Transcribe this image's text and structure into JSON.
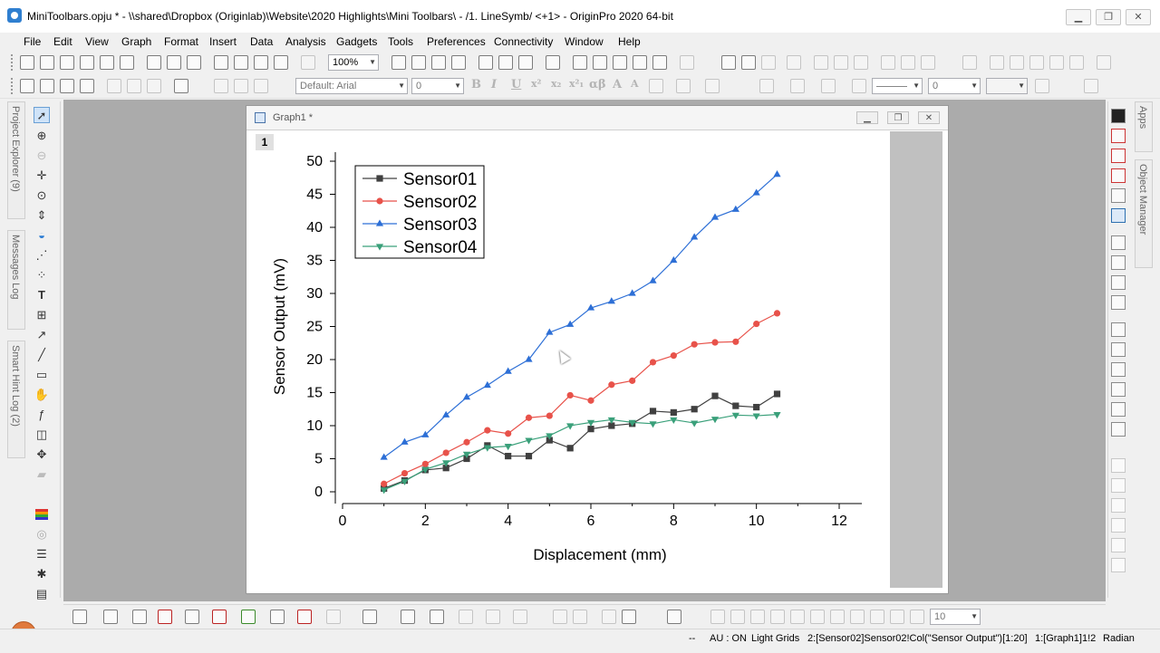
{
  "titlebar": {
    "title": "MiniToolbars.opju * - \\\\shared\\Dropbox (Originlab)\\Website\\2020 Highlights\\Mini Toolbars\\ - /1. LineSymb/ <+1> - OriginPro 2020 64-bit",
    "minimize": "▁",
    "maximize": "❐",
    "close": "✕"
  },
  "menu": [
    "File",
    "Edit",
    "View",
    "Graph",
    "Format",
    "Insert",
    "Data",
    "Analysis",
    "Gadgets",
    "Tools",
    "Preferences",
    "Connectivity",
    "Window",
    "Help"
  ],
  "toolbar": {
    "zoom_value": "100%",
    "font_name": "Default: Arial",
    "font_size": "0",
    "line_width": "0",
    "format_glyphs": [
      "B",
      "I",
      "U",
      "x²",
      "x₂",
      "x²₁",
      "αβ",
      "A",
      "A"
    ]
  },
  "left_panel_tabs": [
    "Project Explorer (9)",
    "Messages Log",
    "Smart Hint Log (2)"
  ],
  "right_panel_tabs": [
    "Apps",
    "Object Manager"
  ],
  "graph_window": {
    "title": "Graph1 *",
    "layer_label": "1",
    "minimize": "▁",
    "restore": "❐",
    "close": "✕"
  },
  "bottom_toolbar": {
    "size_value": "10"
  },
  "status": {
    "dots": "--",
    "au": "AU : ON",
    "grids": "Light Grids",
    "active_col": "2:[Sensor02]Sensor02!Col(\"Sensor Output\")[1:20]",
    "active_layer": "1:[Graph1]1!2",
    "angle": "Radian"
  },
  "chart_data": {
    "type": "line",
    "xlabel": "Displacement (mm)",
    "ylabel": "Sensor Output (mV)",
    "xlim": [
      0,
      12
    ],
    "ylim": [
      0,
      50
    ],
    "x_ticks": [
      0,
      2,
      4,
      6,
      8,
      10,
      12
    ],
    "y_ticks": [
      0,
      5,
      10,
      15,
      20,
      25,
      30,
      35,
      40,
      45,
      50
    ],
    "legend_position": "top-left",
    "grid": false,
    "x": [
      1.0,
      1.5,
      2.0,
      2.5,
      3.0,
      3.5,
      4.0,
      4.5,
      5.0,
      5.5,
      6.0,
      6.5,
      7.0,
      7.5,
      8.0,
      8.5,
      9.0,
      9.5,
      10.0,
      10.5
    ],
    "series": [
      {
        "name": "Sensor01",
        "color": "#404040",
        "marker": "square",
        "values": [
          0.5,
          1.7,
          3.3,
          3.6,
          5.0,
          7.0,
          5.4,
          5.4,
          7.8,
          6.6,
          9.5,
          10.0,
          10.3,
          12.2,
          12.0,
          12.5,
          14.5,
          13.0,
          12.8,
          14.8
        ]
      },
      {
        "name": "Sensor02",
        "color": "#e8524a",
        "marker": "circle",
        "values": [
          1.2,
          2.8,
          4.2,
          5.9,
          7.5,
          9.3,
          8.8,
          11.2,
          11.5,
          14.6,
          13.8,
          16.2,
          16.8,
          19.6,
          20.6,
          22.3,
          22.6,
          22.7,
          25.4,
          27.0
        ]
      },
      {
        "name": "Sensor03",
        "color": "#2d6fd6",
        "marker": "triangle-up",
        "values": [
          5.2,
          7.5,
          8.6,
          11.6,
          14.3,
          16.1,
          18.2,
          20.0,
          24.1,
          25.3,
          27.8,
          28.8,
          30.0,
          31.9,
          35.0,
          38.5,
          41.5,
          42.7,
          45.2,
          48.0
        ]
      },
      {
        "name": "Sensor04",
        "color": "#3aa07a",
        "marker": "triangle-down",
        "values": [
          0.3,
          1.6,
          3.4,
          4.4,
          5.7,
          6.7,
          6.9,
          7.8,
          8.5,
          10.0,
          10.5,
          10.9,
          10.5,
          10.3,
          10.9,
          10.4,
          11.0,
          11.6,
          11.5,
          11.7
        ]
      }
    ]
  }
}
